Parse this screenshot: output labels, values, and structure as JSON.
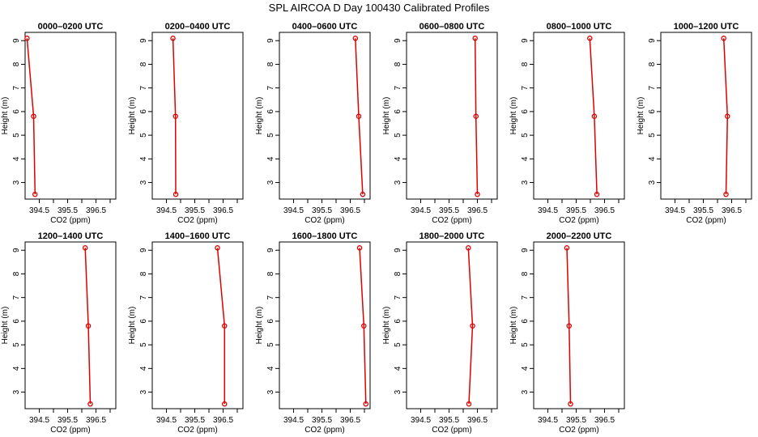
{
  "figure": {
    "title": "SPL AIRCOA D  Day 100430  Calibrated Profiles"
  },
  "chart_data": [
    {
      "type": "line",
      "title": "0000–0200 UTC",
      "xlabel": "CO2 (ppm)",
      "ylabel": "Height (m)",
      "xlim": [
        394.0,
        397.2
      ],
      "ylim": [
        2.3,
        9.35
      ],
      "xticks": [
        "394.5",
        "395.5",
        "396.5"
      ],
      "yticks": [
        "3",
        "4",
        "5",
        "6",
        "7",
        "8",
        "9"
      ],
      "series": [
        {
          "x": [
            394.07,
            394.3,
            394.35
          ],
          "y": [
            9.1,
            5.8,
            2.5
          ]
        }
      ],
      "grid": false
    },
    {
      "type": "line",
      "title": "0200–0400 UTC",
      "xlabel": "CO2 (ppm)",
      "ylabel": "Height (m)",
      "xlim": [
        394.0,
        397.2
      ],
      "ylim": [
        2.3,
        9.35
      ],
      "xticks": [
        "394.5",
        "395.5",
        "396.5"
      ],
      "yticks": [
        "3",
        "4",
        "5",
        "6",
        "7",
        "8",
        "9"
      ],
      "series": [
        {
          "x": [
            394.73,
            394.82,
            394.83
          ],
          "y": [
            9.1,
            5.8,
            2.5
          ]
        }
      ],
      "grid": false
    },
    {
      "type": "line",
      "title": "0400–0600 UTC",
      "xlabel": "CO2 (ppm)",
      "ylabel": "Height (m)",
      "xlim": [
        394.0,
        397.2
      ],
      "ylim": [
        2.3,
        9.35
      ],
      "xticks": [
        "394.5",
        "395.5",
        "396.5"
      ],
      "yticks": [
        "3",
        "4",
        "5",
        "6",
        "7",
        "8",
        "9"
      ],
      "series": [
        {
          "x": [
            396.68,
            396.8,
            396.94
          ],
          "y": [
            9.1,
            5.8,
            2.5
          ]
        }
      ],
      "grid": false
    },
    {
      "type": "line",
      "title": "0600–0800 UTC",
      "xlabel": "CO2 (ppm)",
      "ylabel": "Height (m)",
      "xlim": [
        394.0,
        397.2
      ],
      "ylim": [
        2.3,
        9.35
      ],
      "xticks": [
        "394.5",
        "395.5",
        "396.5"
      ],
      "yticks": [
        "3",
        "4",
        "5",
        "6",
        "7",
        "8",
        "9"
      ],
      "series": [
        {
          "x": [
            396.42,
            396.45,
            396.5
          ],
          "y": [
            9.1,
            5.8,
            2.5
          ]
        }
      ],
      "grid": false
    },
    {
      "type": "line",
      "title": "0800–1000 UTC",
      "xlabel": "CO2 (ppm)",
      "ylabel": "Height (m)",
      "xlim": [
        394.0,
        397.2
      ],
      "ylim": [
        2.3,
        9.35
      ],
      "xticks": [
        "394.5",
        "395.5",
        "396.5"
      ],
      "yticks": [
        "3",
        "4",
        "5",
        "6",
        "7",
        "8",
        "9"
      ],
      "series": [
        {
          "x": [
            395.98,
            396.14,
            396.23
          ],
          "y": [
            9.1,
            5.8,
            2.5
          ]
        }
      ],
      "grid": false
    },
    {
      "type": "line",
      "title": "1000–1200 UTC",
      "xlabel": "CO2 (ppm)",
      "ylabel": "Height (m)",
      "xlim": [
        394.0,
        397.2
      ],
      "ylim": [
        2.3,
        9.35
      ],
      "xticks": [
        "394.5",
        "395.5",
        "396.5"
      ],
      "yticks": [
        "3",
        "4",
        "5",
        "6",
        "7",
        "8",
        "9"
      ],
      "series": [
        {
          "x": [
            396.22,
            396.35,
            396.3
          ],
          "y": [
            9.1,
            5.8,
            2.5
          ]
        }
      ],
      "grid": false
    },
    {
      "type": "line",
      "title": "1200–1400 UTC",
      "xlabel": "CO2 (ppm)",
      "ylabel": "Height (m)",
      "xlim": [
        394.0,
        397.2
      ],
      "ylim": [
        2.3,
        9.35
      ],
      "xticks": [
        "394.5",
        "395.5",
        "396.5"
      ],
      "yticks": [
        "3",
        "4",
        "5",
        "6",
        "7",
        "8",
        "9"
      ],
      "series": [
        {
          "x": [
            396.12,
            396.23,
            396.3
          ],
          "y": [
            9.1,
            5.8,
            2.5
          ]
        }
      ],
      "grid": false
    },
    {
      "type": "line",
      "title": "1400–1600 UTC",
      "xlabel": "CO2 (ppm)",
      "ylabel": "Height (m)",
      "xlim": [
        394.0,
        397.2
      ],
      "ylim": [
        2.3,
        9.35
      ],
      "xticks": [
        "394.5",
        "395.5",
        "396.5"
      ],
      "yticks": [
        "3",
        "4",
        "5",
        "6",
        "7",
        "8",
        "9"
      ],
      "series": [
        {
          "x": [
            396.3,
            396.55,
            396.55
          ],
          "y": [
            9.1,
            5.8,
            2.5
          ]
        }
      ],
      "grid": false
    },
    {
      "type": "line",
      "title": "1600–1800 UTC",
      "xlabel": "CO2 (ppm)",
      "ylabel": "Height (m)",
      "xlim": [
        394.0,
        397.2
      ],
      "ylim": [
        2.3,
        9.35
      ],
      "xticks": [
        "394.5",
        "395.5",
        "396.5"
      ],
      "yticks": [
        "3",
        "4",
        "5",
        "6",
        "7",
        "8",
        "9"
      ],
      "series": [
        {
          "x": [
            396.83,
            396.98,
            397.05
          ],
          "y": [
            9.1,
            5.8,
            2.5
          ]
        }
      ],
      "grid": false
    },
    {
      "type": "line",
      "title": "1800–2000 UTC",
      "xlabel": "CO2 (ppm)",
      "ylabel": "Height (m)",
      "xlim": [
        394.0,
        397.2
      ],
      "ylim": [
        2.3,
        9.35
      ],
      "xticks": [
        "394.5",
        "395.5",
        "396.5"
      ],
      "yticks": [
        "3",
        "4",
        "5",
        "6",
        "7",
        "8",
        "9"
      ],
      "series": [
        {
          "x": [
            396.18,
            396.33,
            396.2
          ],
          "y": [
            9.1,
            5.8,
            2.5
          ]
        }
      ],
      "grid": false
    },
    {
      "type": "line",
      "title": "2000–2200 UTC",
      "xlabel": "CO2 (ppm)",
      "ylabel": "Height (m)",
      "xlim": [
        394.0,
        397.2
      ],
      "ylim": [
        2.3,
        9.35
      ],
      "xticks": [
        "394.5",
        "395.5",
        "396.5"
      ],
      "yticks": [
        "3",
        "4",
        "5",
        "6",
        "7",
        "8",
        "9"
      ],
      "series": [
        {
          "x": [
            395.17,
            395.25,
            395.3
          ],
          "y": [
            9.1,
            5.8,
            2.5
          ]
        }
      ],
      "grid": false
    }
  ],
  "colors": {
    "series": "#e00000",
    "axis": "#000000"
  }
}
